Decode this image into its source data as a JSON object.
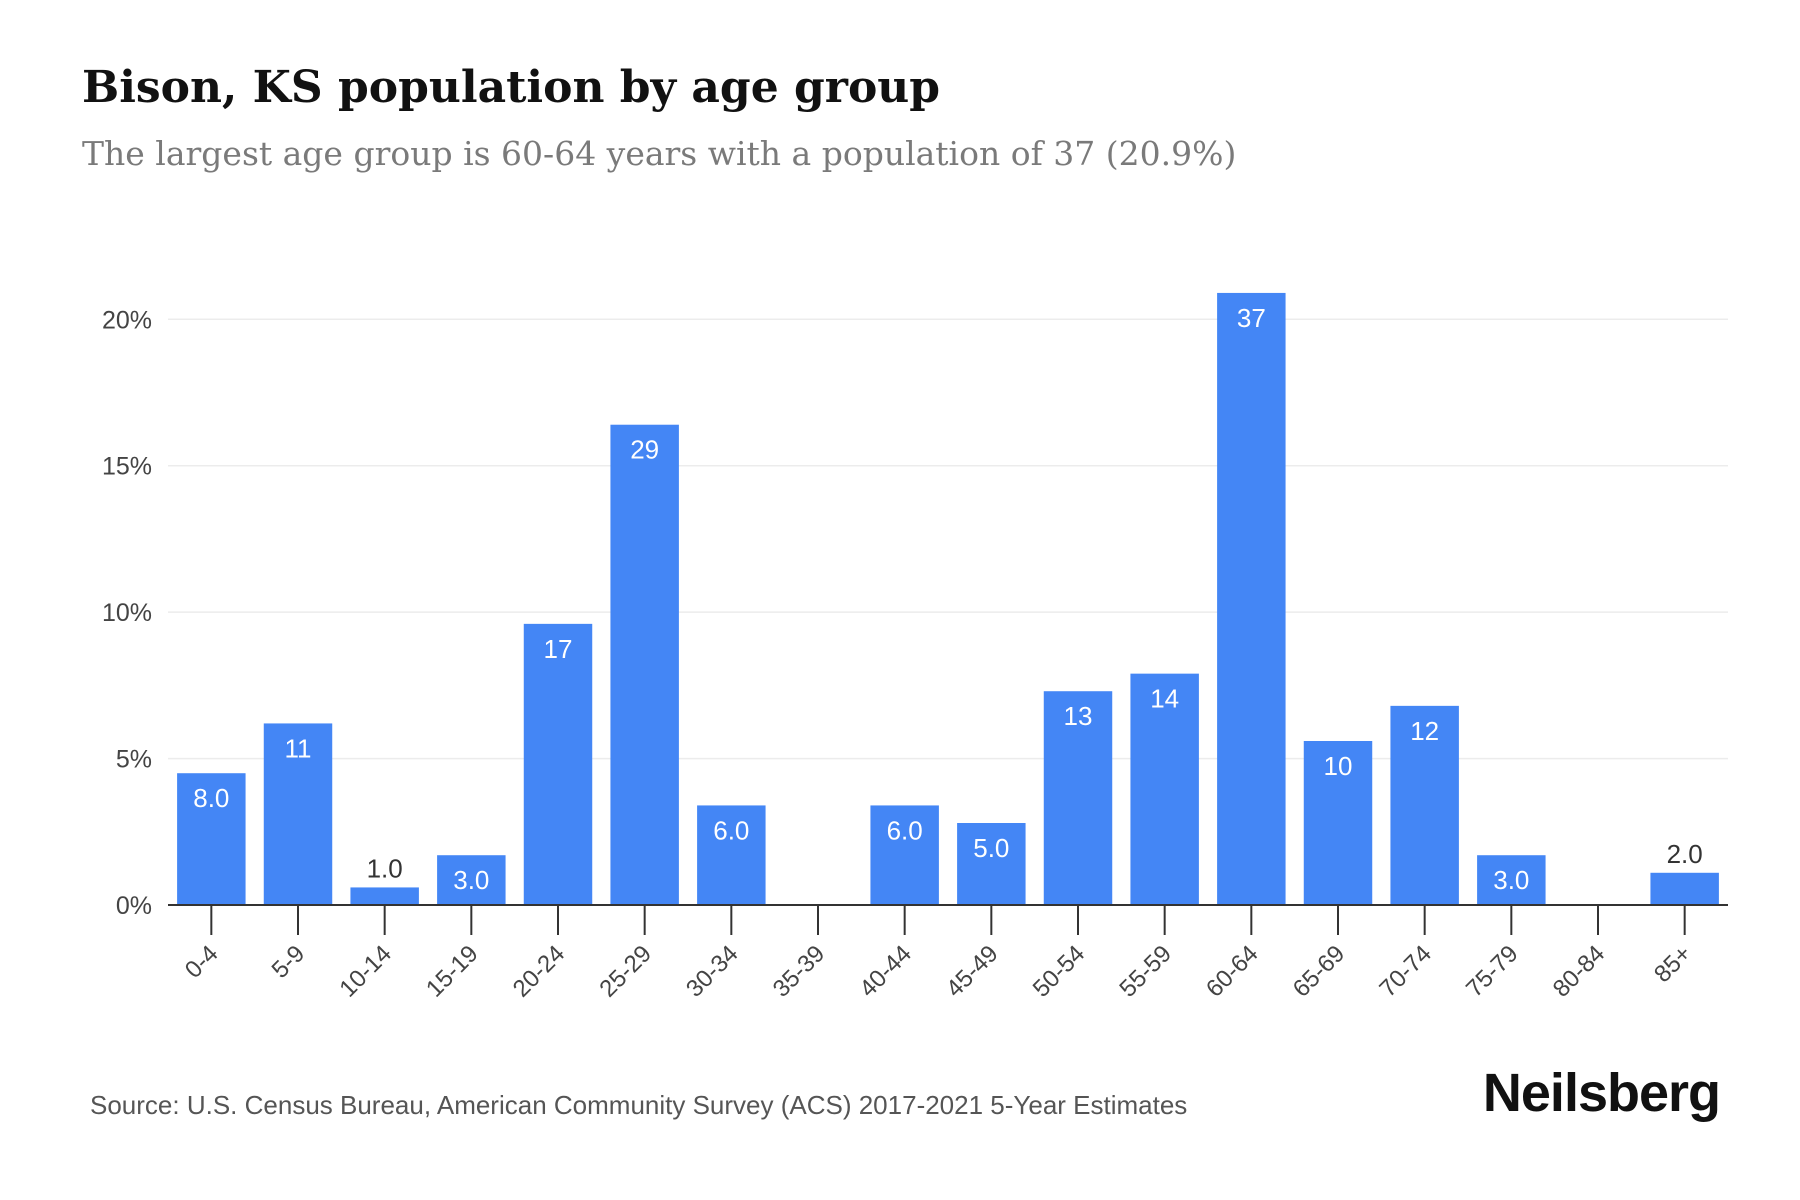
{
  "title": "Bison, KS population by age group",
  "subtitle": "The largest age group is 60-64 years with a population of 37 (20.9%)",
  "source": "Source: U.S. Census Bureau, American Community Survey (ACS) 2017-2021 5-Year Estimates",
  "brand": "Neilsberg",
  "colors": {
    "bar": "#4486f5",
    "bar_label_inside": "#ffffff",
    "bar_label_outside": "#333333",
    "grid": "#ececec",
    "axis": "#333333",
    "tick_text": "#444444"
  },
  "chart_data": {
    "type": "bar",
    "categories": [
      "0-4",
      "5-9",
      "10-14",
      "15-19",
      "20-24",
      "25-29",
      "30-34",
      "35-39",
      "40-44",
      "45-49",
      "50-54",
      "55-59",
      "60-64",
      "65-69",
      "70-74",
      "75-79",
      "80-84",
      "85+"
    ],
    "values": [
      4.5,
      6.2,
      0.6,
      1.7,
      9.6,
      16.4,
      3.4,
      0,
      3.4,
      2.8,
      7.3,
      7.9,
      20.9,
      5.6,
      6.8,
      1.7,
      0,
      1.1
    ],
    "data_labels": [
      "8.0",
      "11",
      "1.0",
      "3.0",
      "17",
      "29",
      "6.0",
      "",
      "6.0",
      "5.0",
      "13",
      "14",
      "37",
      "10",
      "12",
      "3.0",
      "",
      "2.0"
    ],
    "ylim": [
      0,
      21
    ],
    "yticks": [
      0,
      5,
      10,
      15,
      20
    ],
    "ytick_labels": [
      "0%",
      "5%",
      "10%",
      "15%",
      "20%"
    ],
    "grid": true,
    "legend": "none"
  }
}
